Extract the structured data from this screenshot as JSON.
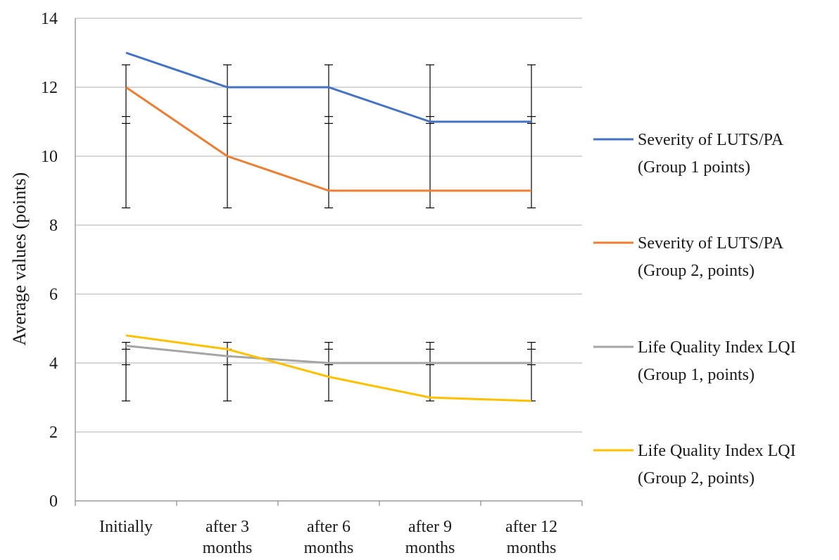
{
  "chart_data": {
    "type": "line",
    "title": "",
    "xlabel": "",
    "ylabel": "Average values (points)",
    "ylim": [
      0,
      14
    ],
    "yticks": [
      "0",
      "2",
      "4",
      "6",
      "8",
      "10",
      "12",
      "14"
    ],
    "grid": true,
    "legend_position": "right",
    "categories": [
      [
        "Initially"
      ],
      [
        "after 3",
        "months"
      ],
      [
        "after 6",
        "months"
      ],
      [
        "after 9",
        "months"
      ],
      [
        "after 12",
        "months"
      ]
    ],
    "series": [
      {
        "name_lines": [
          "Severity of LUTS/PA",
          "(Group 1 points)"
        ],
        "color": "#4472C4",
        "values": [
          13,
          12,
          12,
          11,
          11
        ]
      },
      {
        "name_lines": [
          "Severity of LUTS/PA",
          "(Group 2, points)"
        ],
        "color": "#ED7D31",
        "values": [
          12,
          10,
          9,
          9,
          9
        ]
      },
      {
        "name_lines": [
          "Life Quality Index LQI",
          "(Group 1, points)"
        ],
        "color": "#A5A5A5",
        "values": [
          4.5,
          4.2,
          4.0,
          4.0,
          4.0
        ]
      },
      {
        "name_lines": [
          "Life Quality Index LQI",
          "(Group 2, points)"
        ],
        "color": "#FFC000",
        "values": [
          4.8,
          4.4,
          3.6,
          3.0,
          2.9
        ]
      }
    ],
    "error_bars": [
      {
        "low": 8.5,
        "high": 12.65,
        "inner": [
          11.15,
          10.95
        ]
      },
      {
        "low": 2.9,
        "high": 4.6,
        "inner": [
          4.4,
          3.95
        ]
      }
    ],
    "error_bar_color": "#000000",
    "grid_color": "#BFBFBF",
    "axis_color": "#888888"
  }
}
